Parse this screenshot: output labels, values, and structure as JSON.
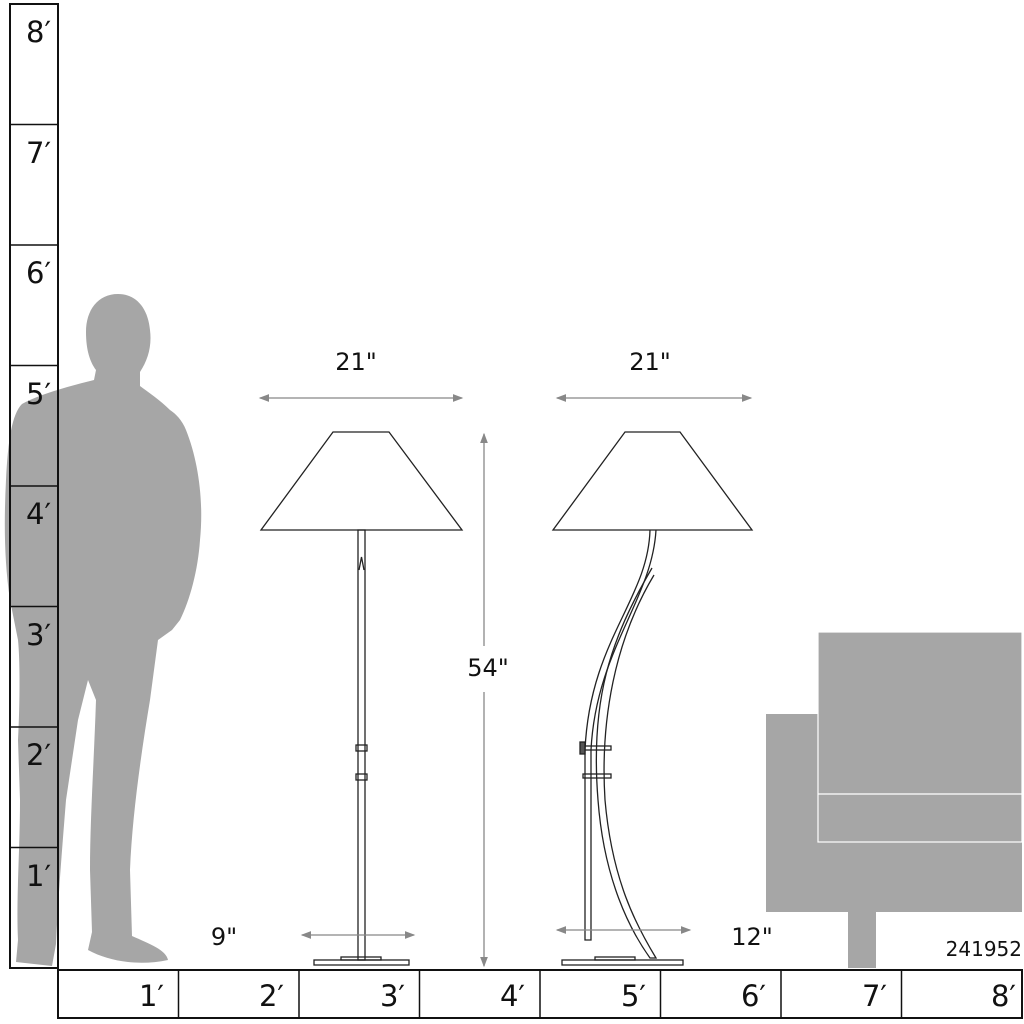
{
  "vertical_ruler": {
    "labels": [
      "8′",
      "7′",
      "6′",
      "5′",
      "4′",
      "3′",
      "2′",
      "1′"
    ]
  },
  "horizontal_ruler": {
    "labels": [
      "1′",
      "2′",
      "3′",
      "4′",
      "5′",
      "6′",
      "7′",
      "8′"
    ]
  },
  "lamp_straight": {
    "shade_width": "21\"",
    "base_width": "9\""
  },
  "lamp_curved": {
    "shade_width": "21\"",
    "base_width": "12\""
  },
  "height_dimension": "54\"",
  "product_code": "241952",
  "colors": {
    "silhouette": "#a6a6a6",
    "line": "#222222",
    "dimension": "#888888"
  }
}
